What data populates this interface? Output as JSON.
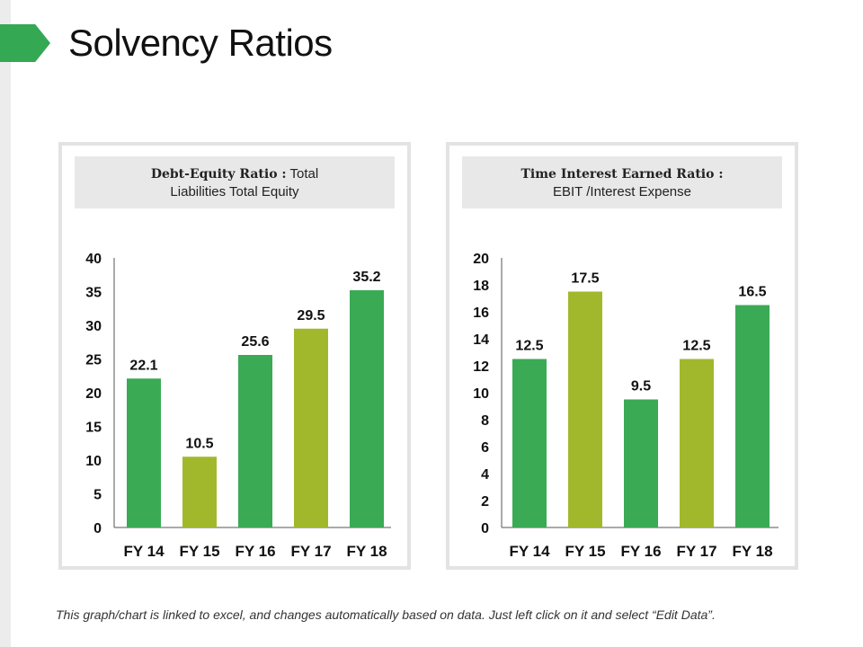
{
  "slide": {
    "title": "Solvency Ratios",
    "footnote": "This graph/chart is linked to excel, and changes automatically based on data. Just left click on it and select “Edit Data”."
  },
  "colors": {
    "accent": "#34a853",
    "green": "#3aaa55",
    "olive": "#a2b82c"
  },
  "chart_data": [
    {
      "type": "bar",
      "title_bold": "Debt-Equity Ratio :",
      "title_rest": " Total",
      "subtitle": "Liabilities  Total Equity",
      "categories": [
        "FY 14",
        "FY 15",
        "FY 16",
        "FY 17",
        "FY 18"
      ],
      "values": [
        22.1,
        10.5,
        25.6,
        29.5,
        35.2
      ],
      "value_labels": [
        "22.1",
        "10.5",
        "25.6",
        "29.5",
        "35.2"
      ],
      "bar_colors": [
        "#3aaa55",
        "#a2b82c",
        "#3aaa55",
        "#a2b82c",
        "#3aaa55"
      ],
      "yticks": [
        0,
        5,
        10,
        15,
        20,
        25,
        30,
        35,
        40
      ],
      "ylim": [
        0,
        40
      ]
    },
    {
      "type": "bar",
      "title_bold": "Time Interest Earned Ratio :",
      "title_rest": "",
      "subtitle": "EBIT /Interest Expense",
      "categories": [
        "FY 14",
        "FY 15",
        "FY 16",
        "FY 17",
        "FY 18"
      ],
      "values": [
        12.5,
        17.5,
        9.5,
        12.5,
        16.5
      ],
      "value_labels": [
        "12.5",
        "17.5",
        "9.5",
        "12.5",
        "16.5"
      ],
      "bar_colors": [
        "#3aaa55",
        "#a2b82c",
        "#3aaa55",
        "#a2b82c",
        "#3aaa55"
      ],
      "yticks": [
        0,
        2,
        4,
        6,
        8,
        10,
        12,
        14,
        16,
        18,
        20
      ],
      "ylim": [
        0,
        20
      ]
    }
  ]
}
